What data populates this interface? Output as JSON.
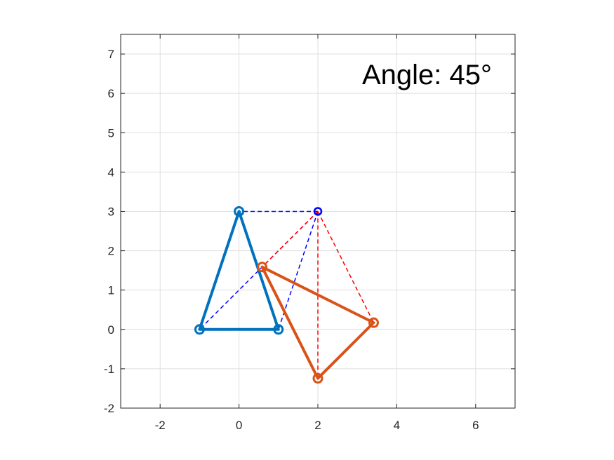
{
  "chart_data": {
    "type": "line",
    "title": "",
    "xlabel": "",
    "ylabel": "",
    "xlim": [
      -3,
      7
    ],
    "ylim": [
      -2,
      7.5
    ],
    "x_ticks": [
      -2,
      0,
      2,
      4,
      6
    ],
    "y_ticks": [
      -2,
      -1,
      0,
      1,
      2,
      3,
      4,
      5,
      6,
      7
    ],
    "x_tick_labels": [
      "-2",
      "0",
      "2",
      "4",
      "6"
    ],
    "y_tick_labels": [
      "-2",
      "-1",
      "0",
      "1",
      "2",
      "3",
      "4",
      "5",
      "6",
      "7"
    ],
    "grid": true,
    "annotation": "Angle: 45°",
    "pivot": {
      "x": 2,
      "y": 3,
      "color": "#0000ff"
    },
    "series": [
      {
        "style": "solid-closed",
        "color": "#0072bd",
        "points": [
          [
            -1,
            0
          ],
          [
            1,
            0
          ],
          [
            0,
            3
          ]
        ]
      },
      {
        "style": "solid-closed",
        "color": "#d95319",
        "points": [
          [
            0.586,
            1.586
          ],
          [
            2,
            -1.243
          ],
          [
            3.414,
            0.172
          ]
        ]
      },
      {
        "style": "dashed",
        "color": "#0000ff",
        "points": [
          [
            -1,
            0
          ],
          [
            1,
            0
          ],
          [
            0,
            3
          ]
        ]
      },
      {
        "style": "dashed",
        "color": "#ff0000",
        "points": [
          [
            0.586,
            1.586
          ],
          [
            2,
            -1.243
          ],
          [
            3.414,
            0.172
          ]
        ]
      }
    ]
  }
}
